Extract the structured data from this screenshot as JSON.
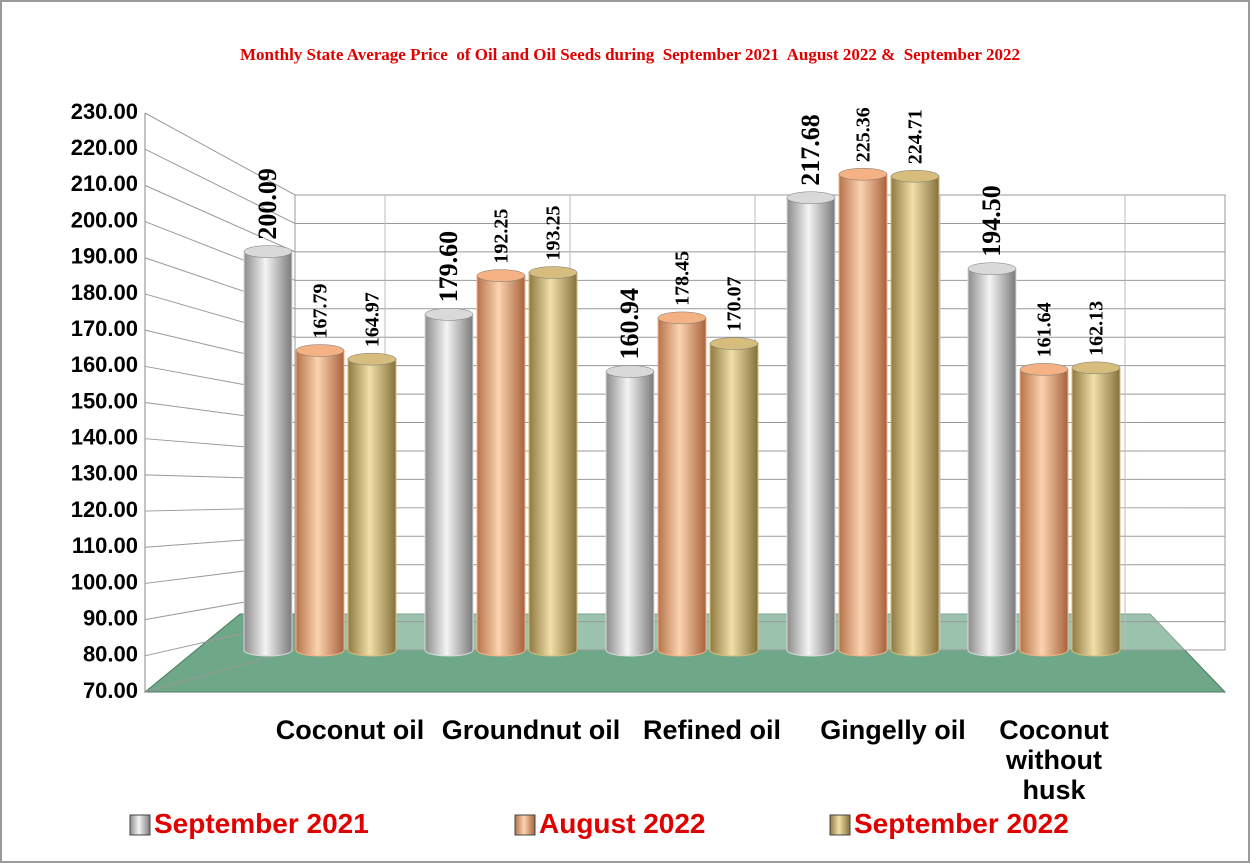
{
  "chart_data": {
    "type": "bar3d",
    "title": "Monthly State Average Price  of Oil and Oil Seeds during  September 2021  August 2022 &  September 2022",
    "categories": [
      "Coconut oil",
      "Groundnut oil",
      "Refined oil",
      "Gingelly oil",
      "Coconut without husk"
    ],
    "series": [
      {
        "name": "September 2021",
        "color": "#d9d9d9",
        "values": [
          200.09,
          179.6,
          160.94,
          217.68,
          194.5
        ],
        "value_labels": [
          "200.09",
          "179.60",
          "160.94",
          "217.68",
          "194.50"
        ]
      },
      {
        "name": "August 2022",
        "color": "#f4b183",
        "values": [
          167.79,
          192.25,
          178.45,
          225.36,
          161.64
        ],
        "value_labels": [
          "167.79",
          "192.25",
          "178.45",
          "225.36",
          "161.64"
        ]
      },
      {
        "name": "September 2022",
        "color": "#d6bd7e",
        "values": [
          164.97,
          193.25,
          170.07,
          224.71,
          162.13
        ],
        "value_labels": [
          "164.97",
          "193.25",
          "170.07",
          "224.71",
          "162.13"
        ]
      }
    ],
    "ylim": [
      70,
      230
    ],
    "yticks": [
      {
        "value": 70,
        "label": "70.00"
      },
      {
        "value": 80,
        "label": "80.00"
      },
      {
        "value": 90,
        "label": "90.00"
      },
      {
        "value": 100,
        "label": "100.00"
      },
      {
        "value": 110,
        "label": "110.00"
      },
      {
        "value": 120,
        "label": "120.00"
      },
      {
        "value": 130,
        "label": "130.00"
      },
      {
        "value": 140,
        "label": "140.00"
      },
      {
        "value": 150,
        "label": "150.00"
      },
      {
        "value": 160,
        "label": "160.00"
      },
      {
        "value": 170,
        "label": "170.00"
      },
      {
        "value": 180,
        "label": "180.00"
      },
      {
        "value": 190,
        "label": "190.00"
      },
      {
        "value": 200,
        "label": "200.00"
      },
      {
        "value": 210,
        "label": "210.00"
      },
      {
        "value": 220,
        "label": "220.00"
      },
      {
        "value": 230,
        "label": "230.00"
      }
    ],
    "grid": true
  }
}
